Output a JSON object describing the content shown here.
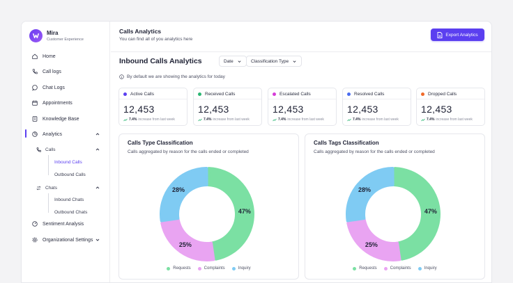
{
  "brand": {
    "name": "Mira",
    "subtitle": "Customer Experience"
  },
  "sidebar": {
    "home": "Home",
    "call_logs": "Call logs",
    "chat_logs": "Chat Logs",
    "appointments": "Appointments",
    "knowledge_base": "Knowledge Base",
    "analytics": "Analytics",
    "calls": "Calls",
    "inbound_calls": "Inbound Calls",
    "outbound_calls": "Outbound Calls",
    "chats": "Chats",
    "inbound_chats": "Inbound Chats",
    "outbound_chats": "Outbound Chats",
    "sentiment": "Sentiment Analysis",
    "org_settings": "Organizational Settings"
  },
  "header": {
    "title": "Calls Analytics",
    "subtitle": "You can find all of you analytics here",
    "export_label": "Export Analytics"
  },
  "section": {
    "title": "Inbound Calls Analytics",
    "date_filter": "Date",
    "type_filter": "Classification Type",
    "note": "By default we are showing the analytics for today"
  },
  "stats": [
    {
      "label": "Active Calls",
      "value": "12,453",
      "pct": "7.4%",
      "trend": "increase from last week",
      "color": "#5b3ff0"
    },
    {
      "label": "Received Calls",
      "value": "12,453",
      "pct": "7.4%",
      "trend": "increase from last week",
      "color": "#2bb673"
    },
    {
      "label": "Escalated Calls",
      "value": "12,453",
      "pct": "7.4%",
      "trend": "increase from last week",
      "color": "#d63cd8"
    },
    {
      "label": "Resolved Calls",
      "value": "12,453",
      "pct": "7.4%",
      "trend": "increase from last week",
      "color": "#4a6cf0"
    },
    {
      "label": "Dropped Calls",
      "value": "12,453",
      "pct": "7.4%",
      "trend": "increase from last week",
      "color": "#f06a2a"
    }
  ],
  "chart_data": [
    {
      "type": "pie",
      "title": "Calls Type Classification",
      "subtitle": "Calls aggregated by reason for the calls  ended or completed",
      "categories": [
        "Requests",
        "Complaints",
        "Inquiry"
      ],
      "values": [
        47,
        25,
        28
      ],
      "labels": [
        "47%",
        "25%",
        "28%"
      ],
      "colors": [
        "#7be0a3",
        "#e9a4f2",
        "#7fcbf3"
      ],
      "legend_position": "bottom"
    },
    {
      "type": "pie",
      "title": "Calls Tags Classification",
      "subtitle": "Calls aggregated by reason for the calls  ended or completed",
      "categories": [
        "Requests",
        "Complaints",
        "Inquiry"
      ],
      "values": [
        47,
        25,
        28
      ],
      "labels": [
        "47%",
        "25%",
        "28%"
      ],
      "colors": [
        "#7be0a3",
        "#e9a4f2",
        "#7fcbf3"
      ],
      "legend_position": "bottom"
    }
  ]
}
